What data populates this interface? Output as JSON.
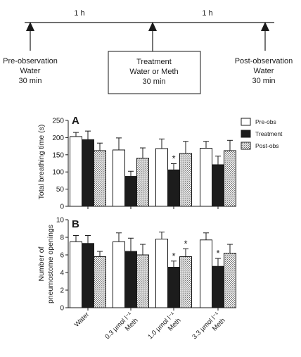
{
  "timeline": {
    "intervals": [
      "1 h",
      "1 h"
    ],
    "phases": [
      {
        "lines": [
          "Pre-observation",
          "Water",
          "30 min"
        ],
        "boxed": false
      },
      {
        "lines": [
          "Treatment",
          "Water or Meth",
          "30 min"
        ],
        "boxed": true
      },
      {
        "lines": [
          "Post-observation",
          "Water",
          "30 min"
        ],
        "boxed": false
      }
    ]
  },
  "colors": {
    "pre_obs": "#ffffff",
    "treatment": "#1c1c1c",
    "post_obs": "#d9d9d9",
    "stroke": "#1a1a1a"
  },
  "legend": {
    "placement": "top-right of panel A",
    "entries": [
      {
        "label": "Pre-obs",
        "fill": "white"
      },
      {
        "label": "Treatment",
        "fill": "black"
      },
      {
        "label": "Post-obs",
        "fill": "stippled grey"
      }
    ]
  },
  "chart_data": [
    {
      "type": "bar",
      "panel_label": "A",
      "ylabel": "Total breathing time (s)",
      "ylim": [
        0,
        250
      ],
      "yticks": [
        0,
        50,
        100,
        150,
        200,
        250
      ],
      "categories": [
        "Water",
        "0.3 µmol l⁻¹ Meth",
        "1.0 µmol l⁻¹ Meth",
        "3.3 µmol l⁻¹ Meth"
      ],
      "series": [
        {
          "name": "Pre-obs",
          "values": [
            203,
            164,
            168,
            169
          ],
          "errors": [
            12,
            35,
            28,
            20
          ]
        },
        {
          "name": "Treatment",
          "values": [
            194,
            87,
            106,
            121
          ],
          "errors": [
            25,
            15,
            18,
            25
          ]
        },
        {
          "name": "Post-obs",
          "values": [
            162,
            140,
            154,
            162
          ],
          "errors": [
            22,
            30,
            35,
            30
          ]
        }
      ],
      "significance": [
        {
          "category": 2,
          "series": "Treatment",
          "mark": "*"
        }
      ],
      "grid": false
    },
    {
      "type": "bar",
      "panel_label": "B",
      "ylabel_lines": [
        "Number of",
        "pneumostome openings"
      ],
      "ylim": [
        0,
        10
      ],
      "yticks": [
        0,
        2,
        4,
        6,
        8,
        10
      ],
      "categories": [
        "Water",
        "0.3 µmol l⁻¹ Meth",
        "1.0 µmol l⁻¹ Meth",
        "3.3 µmol l⁻¹ Meth"
      ],
      "series": [
        {
          "name": "Pre-obs",
          "values": [
            7.5,
            7.5,
            7.8,
            7.7
          ],
          "errors": [
            0.7,
            1.0,
            0.8,
            0.8
          ]
        },
        {
          "name": "Treatment",
          "values": [
            7.3,
            6.4,
            4.6,
            4.7
          ],
          "errors": [
            0.9,
            1.5,
            0.7,
            0.9
          ]
        },
        {
          "name": "Post-obs",
          "values": [
            5.8,
            6.0,
            5.8,
            6.2
          ],
          "errors": [
            0.6,
            1.2,
            0.9,
            1.0
          ]
        }
      ],
      "significance": [
        {
          "category": 2,
          "series": "Treatment",
          "mark": "*"
        },
        {
          "category": 2,
          "series": "Post-obs",
          "mark": "*"
        },
        {
          "category": 3,
          "series": "Treatment",
          "mark": "*"
        }
      ],
      "grid": false
    }
  ],
  "category_axis_labels": [
    {
      "lines": [
        "Water"
      ]
    },
    {
      "lines": [
        "0.3 µmol l⁻¹",
        "Meth"
      ]
    },
    {
      "lines": [
        "1.0 µmol l⁻¹",
        "Meth"
      ]
    },
    {
      "lines": [
        "3.3 µmol l⁻¹",
        "Meth"
      ]
    }
  ]
}
